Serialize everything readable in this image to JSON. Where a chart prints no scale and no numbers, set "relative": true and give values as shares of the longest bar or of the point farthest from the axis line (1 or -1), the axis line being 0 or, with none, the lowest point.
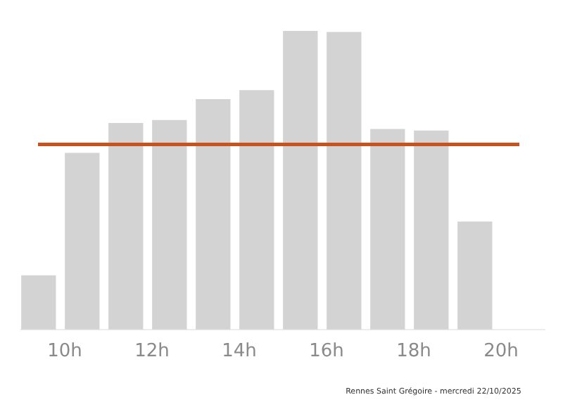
{
  "chart_data": {
    "type": "bar",
    "relative": true,
    "x": [
      9.4,
      10.4,
      11.4,
      12.4,
      13.4,
      14.4,
      15.4,
      16.4,
      17.4,
      18.4,
      19.4
    ],
    "values": [
      0.18,
      0.59,
      0.69,
      0.7,
      0.77,
      0.8,
      1,
      0.995,
      0.67,
      0.665,
      0.36
    ],
    "color": "#d3d3d3",
    "xlim": [
      9,
      21
    ],
    "xticks": [
      {
        "value": 10,
        "label": "10h"
      },
      {
        "value": 12,
        "label": "12h"
      },
      {
        "value": 14,
        "label": "14h"
      },
      {
        "value": 16,
        "label": "16h"
      },
      {
        "value": 18,
        "label": "18h"
      },
      {
        "value": 20,
        "label": "20h"
      }
    ],
    "ref_lines": [
      {
        "axis": "y",
        "value": 0.62,
        "color": "#c8531e"
      }
    ],
    "grid": false,
    "legend": false,
    "annotations": [
      "Rennes Saint Grégoire - mercredi 22/10/2025"
    ]
  }
}
